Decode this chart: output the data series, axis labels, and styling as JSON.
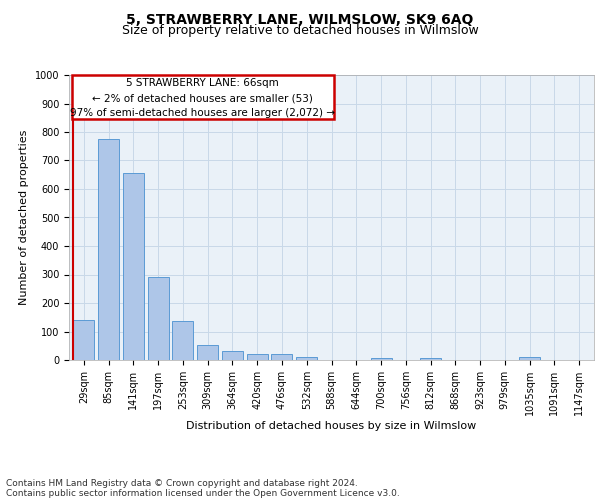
{
  "title": "5, STRAWBERRY LANE, WILMSLOW, SK9 6AQ",
  "subtitle": "Size of property relative to detached houses in Wilmslow",
  "xlabel": "Distribution of detached houses by size in Wilmslow",
  "ylabel": "Number of detached properties",
  "bar_labels": [
    "29sqm",
    "85sqm",
    "141sqm",
    "197sqm",
    "253sqm",
    "309sqm",
    "364sqm",
    "420sqm",
    "476sqm",
    "532sqm",
    "588sqm",
    "644sqm",
    "700sqm",
    "756sqm",
    "812sqm",
    "868sqm",
    "923sqm",
    "979sqm",
    "1035sqm",
    "1091sqm",
    "1147sqm"
  ],
  "bar_values": [
    140,
    775,
    655,
    290,
    137,
    53,
    30,
    20,
    20,
    10,
    0,
    0,
    8,
    0,
    8,
    0,
    0,
    0,
    10,
    0,
    0
  ],
  "bar_color": "#aec6e8",
  "bar_edge_color": "#5b9bd5",
  "property_label": "5 STRAWBERRY LANE: 66sqm",
  "annotation_line1": "← 2% of detached houses are smaller (53)",
  "annotation_line2": "97% of semi-detached houses are larger (2,072) →",
  "annotation_box_color": "#ffffff",
  "annotation_box_edge_color": "#cc0000",
  "vline_color": "#cc0000",
  "vline_x": 0.5,
  "ylim": [
    0,
    1000
  ],
  "yticks": [
    0,
    100,
    200,
    300,
    400,
    500,
    600,
    700,
    800,
    900,
    1000
  ],
  "grid_color": "#c8d8e8",
  "background_color": "#eaf1f8",
  "footer_line1": "Contains HM Land Registry data © Crown copyright and database right 2024.",
  "footer_line2": "Contains public sector information licensed under the Open Government Licence v3.0.",
  "title_fontsize": 10,
  "subtitle_fontsize": 9,
  "axis_label_fontsize": 8,
  "tick_fontsize": 7,
  "footer_fontsize": 6.5
}
